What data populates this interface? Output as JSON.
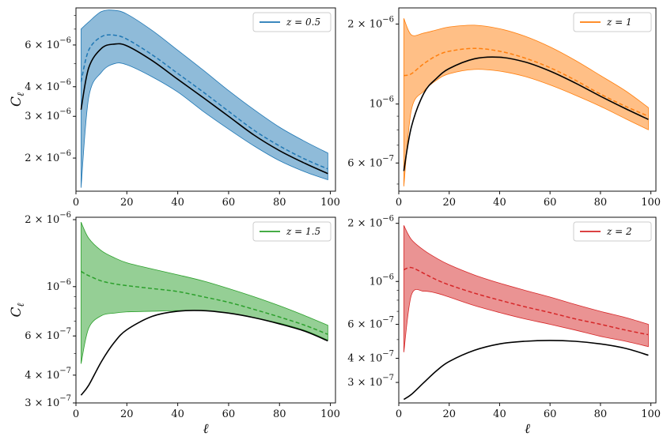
{
  "chart_data": [
    {
      "type": "line",
      "panel": "top-left",
      "legend": {
        "label": "z = 0.5",
        "placement": "top-right"
      },
      "color": "#1f77b4",
      "xlabel": "",
      "ylabel": "C_ℓ",
      "ylog": true,
      "xlim": [
        0,
        102
      ],
      "ylim": [
        1.45e-06,
        8.6e-06
      ],
      "xticks": [
        0,
        20,
        40,
        60,
        80,
        100
      ],
      "yticks": [
        {
          "value": 2e-06,
          "label": "2 × 10^−6"
        },
        {
          "value": 3e-06,
          "label": "3 × 10^−6"
        },
        {
          "value": 4e-06,
          "label": "4 × 10^−6"
        },
        {
          "value": 6e-06,
          "label": "6 × 10^−6"
        }
      ],
      "x": [
        2,
        5,
        10,
        15,
        20,
        30,
        40,
        50,
        60,
        70,
        80,
        90,
        99
      ],
      "series": [
        {
          "style": "solid-black",
          "values": [
            3.2e-06,
            4.8e-06,
            5.8e-06,
            6.05e-06,
            5.95e-06,
            5.15e-06,
            4.3e-06,
            3.6e-06,
            3e-06,
            2.5e-06,
            2.15e-06,
            1.9e-06,
            1.72e-06
          ]
        },
        {
          "style": "dashed-color",
          "values": [
            4.2e-06,
            5.7e-06,
            6.5e-06,
            6.6e-06,
            6.35e-06,
            5.45e-06,
            4.55e-06,
            3.8e-06,
            3.15e-06,
            2.62e-06,
            2.25e-06,
            1.98e-06,
            1.8e-06
          ]
        },
        {
          "style": "band-upper",
          "values": [
            7e-06,
            7.5e-06,
            8.3e-06,
            8.4e-06,
            8.1e-06,
            6.9e-06,
            5.7e-06,
            4.7e-06,
            3.85e-06,
            3.2e-06,
            2.7e-06,
            2.35e-06,
            2.1e-06
          ]
        },
        {
          "style": "band-lower",
          "values": [
            1.5e-06,
            3.6e-06,
            4.6e-06,
            5e-06,
            4.95e-06,
            4.4e-06,
            3.8e-06,
            3.15e-06,
            2.65e-06,
            2.25e-06,
            1.95e-06,
            1.75e-06,
            1.62e-06
          ]
        }
      ]
    },
    {
      "type": "line",
      "panel": "top-right",
      "legend": {
        "label": "z = 1",
        "placement": "top-right"
      },
      "color": "#ff7f0e",
      "xlabel": "",
      "ylabel": "",
      "ylog": true,
      "xlim": [
        0,
        102
      ],
      "ylim": [
        4.7e-07,
        2.3e-06
      ],
      "xticks": [
        0,
        20,
        40,
        60,
        80,
        100
      ],
      "yticks": [
        {
          "value": 6e-07,
          "label": "6 × 10^−7"
        },
        {
          "value": 1e-06,
          "label": "10^−6"
        },
        {
          "value": 2e-06,
          "label": "2 × 10^−6"
        }
      ],
      "x": [
        2,
        5,
        10,
        15,
        20,
        30,
        40,
        50,
        60,
        70,
        80,
        90,
        99
      ],
      "series": [
        {
          "style": "solid-black",
          "values": [
            5.6e-07,
            8.2e-07,
            1.1e-06,
            1.25e-06,
            1.36e-06,
            1.48e-06,
            1.5e-06,
            1.44e-06,
            1.33e-06,
            1.2e-06,
            1.07e-06,
            9.6e-07,
            8.75e-07
          ]
        },
        {
          "style": "dashed-color",
          "values": [
            1.28e-06,
            1.3e-06,
            1.42e-06,
            1.52e-06,
            1.58e-06,
            1.62e-06,
            1.58e-06,
            1.49e-06,
            1.37e-06,
            1.23e-06,
            1.09e-06,
            9.8e-07,
            9e-07
          ]
        },
        {
          "style": "band-upper",
          "values": [
            2.1e-06,
            1.82e-06,
            1.85e-06,
            1.9e-06,
            1.95e-06,
            1.98e-06,
            1.92e-06,
            1.8e-06,
            1.64e-06,
            1.46e-06,
            1.28e-06,
            1.12e-06,
            9.7e-07
          ]
        },
        {
          "style": "band-lower",
          "values": [
            4.9e-07,
            9.5e-07,
            1.12e-06,
            1.23e-06,
            1.3e-06,
            1.35e-06,
            1.33e-06,
            1.27e-06,
            1.18e-06,
            1.08e-06,
            9.8e-07,
            8.8e-07,
            8e-07
          ]
        }
      ]
    },
    {
      "type": "line",
      "panel": "bottom-left",
      "legend": {
        "label": "z = 1.5",
        "placement": "top-right"
      },
      "color": "#2ca02c",
      "xlabel": "ℓ",
      "ylabel": "C_ℓ",
      "ylog": true,
      "xlim": [
        0,
        102
      ],
      "ylim": [
        3e-07,
        2.05e-06
      ],
      "xticks": [
        0,
        20,
        40,
        60,
        80,
        100
      ],
      "yticks": [
        {
          "value": 3e-07,
          "label": "3 × 10^−7"
        },
        {
          "value": 4e-07,
          "label": "4 × 10^−7"
        },
        {
          "value": 6e-07,
          "label": "6 × 10^−7"
        },
        {
          "value": 1e-06,
          "label": "10^−6"
        },
        {
          "value": 2e-06,
          "label": "2 × 10^−6"
        }
      ],
      "x": [
        2,
        5,
        10,
        15,
        20,
        30,
        40,
        50,
        60,
        70,
        80,
        90,
        99
      ],
      "series": [
        {
          "style": "solid-black",
          "values": [
            3.25e-07,
            3.6e-07,
            4.6e-07,
            5.6e-07,
            6.4e-07,
            7.35e-07,
            7.75e-07,
            7.8e-07,
            7.6e-07,
            7.25e-07,
            6.8e-07,
            6.3e-07,
            5.7e-07
          ]
        },
        {
          "style": "dashed-color",
          "values": [
            1.17e-06,
            1.12e-06,
            1.06e-06,
            1.03e-06,
            1.01e-06,
            9.8e-07,
            9.5e-07,
            9e-07,
            8.5e-07,
            7.9e-07,
            7.3e-07,
            6.7e-07,
            6.1e-07
          ]
        },
        {
          "style": "band-upper",
          "values": [
            1.95e-06,
            1.65e-06,
            1.45e-06,
            1.35e-06,
            1.28e-06,
            1.2e-06,
            1.13e-06,
            1.06e-06,
            9.8e-07,
            9e-07,
            8.2e-07,
            7.4e-07,
            6.7e-07
          ]
        },
        {
          "style": "band-lower",
          "values": [
            4.5e-07,
            6.5e-07,
            7.4e-07,
            7.6e-07,
            7.7e-07,
            7.75e-07,
            7.8e-07,
            7.8e-07,
            7.6e-07,
            7.25e-07,
            6.85e-07,
            6.35e-07,
            5.75e-07
          ]
        }
      ]
    },
    {
      "type": "line",
      "panel": "bottom-right",
      "legend": {
        "label": "z = 2",
        "placement": "top-right"
      },
      "color": "#d62728",
      "xlabel": "ℓ",
      "ylabel": "",
      "ylog": true,
      "xlim": [
        0,
        102
      ],
      "ylim": [
        2.35e-07,
        2.15e-06
      ],
      "xticks": [
        0,
        20,
        40,
        60,
        80,
        100
      ],
      "yticks": [
        {
          "value": 3e-07,
          "label": "3 × 10^−7"
        },
        {
          "value": 4e-07,
          "label": "4 × 10^−7"
        },
        {
          "value": 6e-07,
          "label": "6 × 10^−7"
        },
        {
          "value": 1e-06,
          "label": "10^−6"
        },
        {
          "value": 2e-06,
          "label": "2 × 10^−6"
        }
      ],
      "x": [
        2,
        5,
        10,
        15,
        20,
        30,
        40,
        50,
        60,
        70,
        80,
        90,
        99
      ],
      "series": [
        {
          "style": "solid-black",
          "values": [
            2.45e-07,
            2.6e-07,
            3e-07,
            3.45e-07,
            3.85e-07,
            4.4e-07,
            4.75e-07,
            4.9e-07,
            4.95e-07,
            4.9e-07,
            4.75e-07,
            4.5e-07,
            4.15e-07
          ]
        },
        {
          "style": "dashed-color",
          "values": [
            1.15e-06,
            1.18e-06,
            1.1e-06,
            1.02e-06,
            9.6e-07,
            8.7e-07,
            8e-07,
            7.4e-07,
            6.9e-07,
            6.4e-07,
            6e-07,
            5.6e-07,
            5.3e-07
          ]
        },
        {
          "style": "band-upper",
          "values": [
            1.95e-06,
            1.65e-06,
            1.45e-06,
            1.32e-06,
            1.22e-06,
            1.08e-06,
            9.8e-07,
            9e-07,
            8.3e-07,
            7.6e-07,
            7e-07,
            6.5e-07,
            6e-07
          ]
        },
        {
          "style": "band-lower",
          "values": [
            4.3e-07,
            8.5e-07,
            8.9e-07,
            8.7e-07,
            8.3e-07,
            7.5e-07,
            6.9e-07,
            6.4e-07,
            6e-07,
            5.6e-07,
            5.2e-07,
            4.9e-07,
            4.6e-07
          ]
        }
      ]
    }
  ]
}
